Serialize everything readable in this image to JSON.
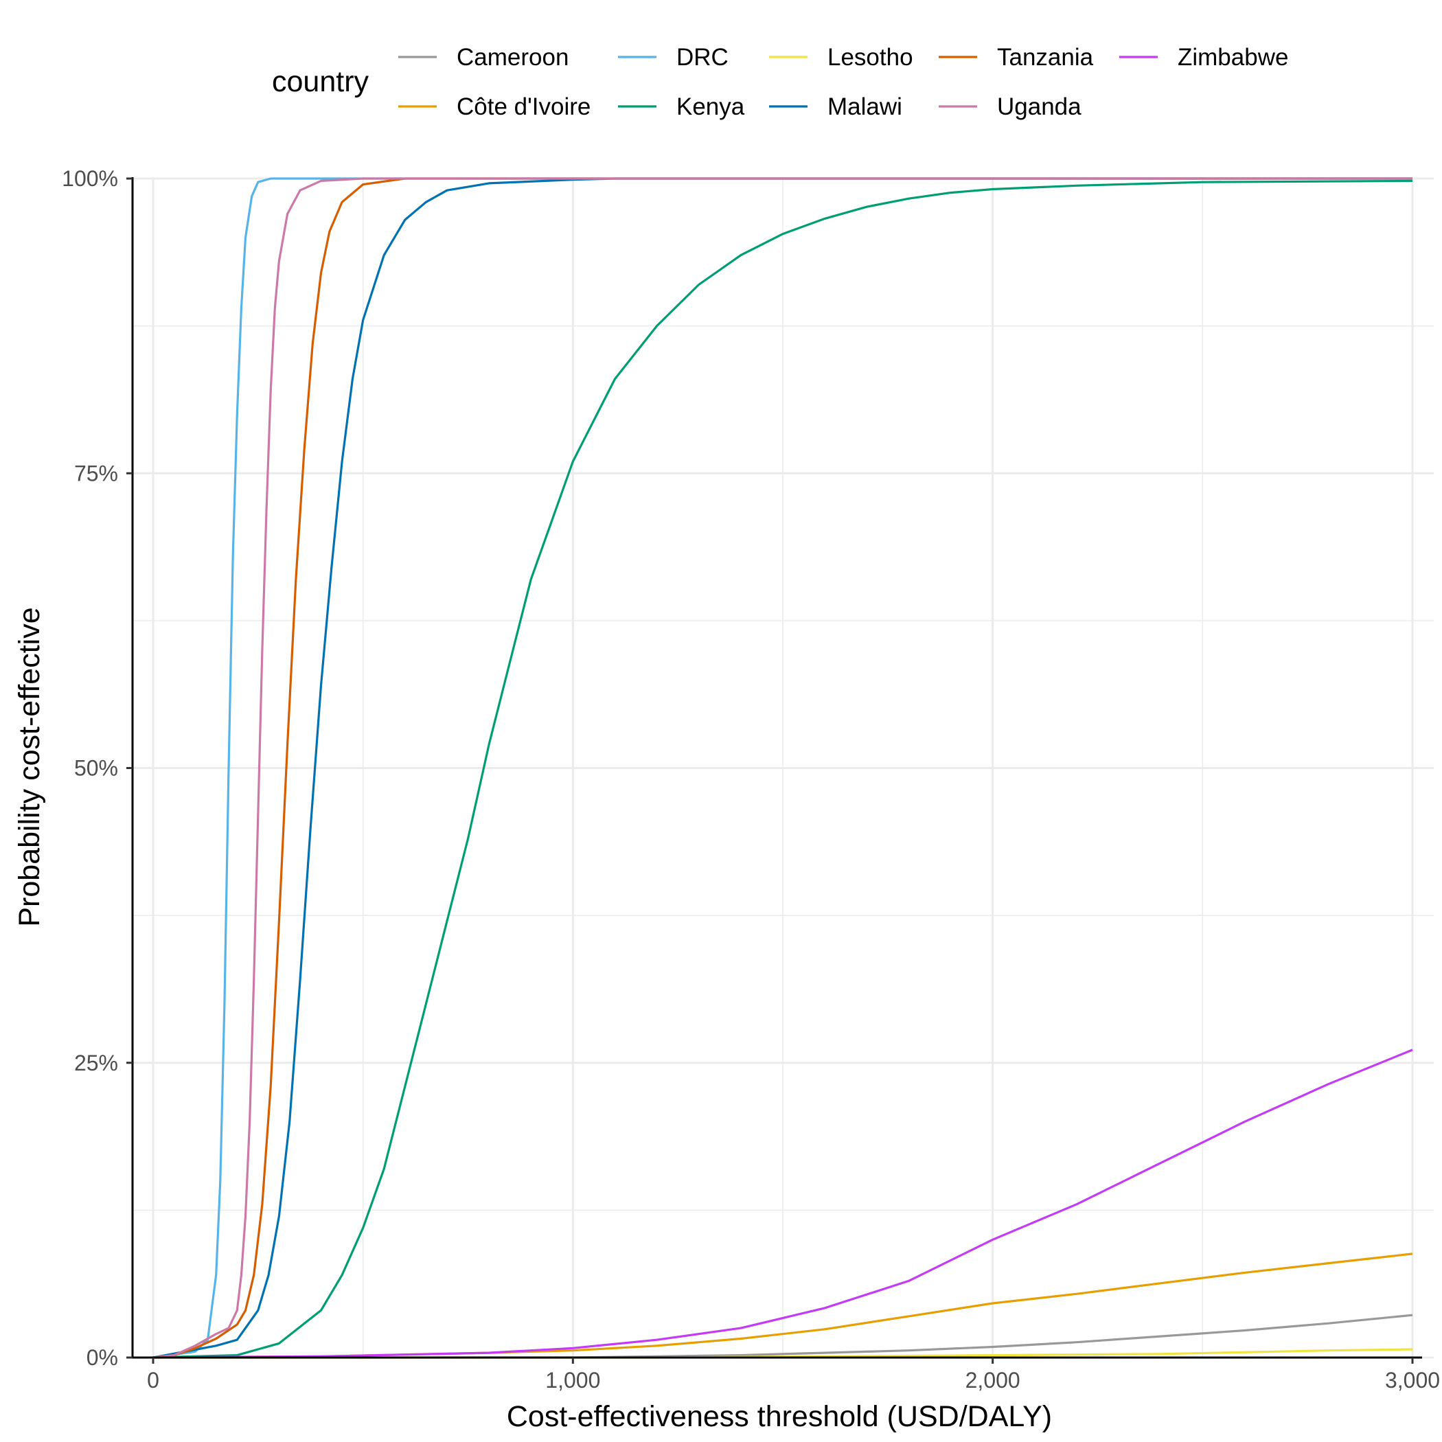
{
  "chart_data": {
    "type": "line",
    "title": "",
    "xlabel": "Cost-effectiveness threshold (USD/DALY)",
    "ylabel": "Probability cost-effective",
    "xlim": [
      0,
      3000
    ],
    "ylim": [
      0,
      1
    ],
    "x_ticks": [
      0,
      1000,
      2000,
      3000
    ],
    "x_tick_labels": [
      "0",
      "1,000",
      "2,000",
      "3,000"
    ],
    "y_ticks": [
      0,
      0.25,
      0.5,
      0.75,
      1
    ],
    "y_tick_labels": [
      "0%",
      "25%",
      "50%",
      "75%",
      "100%"
    ],
    "grid": true,
    "legend": {
      "title": "country",
      "position": "top"
    },
    "series": [
      {
        "name": "Cameroon",
        "color": "#999999",
        "points": [
          [
            0,
            0
          ],
          [
            1000,
            0
          ],
          [
            1200,
            0.001
          ],
          [
            1400,
            0.002
          ],
          [
            1600,
            0.004
          ],
          [
            1800,
            0.006
          ],
          [
            2000,
            0.009
          ],
          [
            2200,
            0.013
          ],
          [
            2400,
            0.018
          ],
          [
            2600,
            0.023
          ],
          [
            2800,
            0.029
          ],
          [
            3000,
            0.036
          ]
        ]
      },
      {
        "name": "Côte d'Ivoire",
        "color": "#E69F00",
        "points": [
          [
            0,
            0
          ],
          [
            400,
            0.001
          ],
          [
            800,
            0.004
          ],
          [
            1000,
            0.006
          ],
          [
            1200,
            0.01
          ],
          [
            1400,
            0.016
          ],
          [
            1600,
            0.024
          ],
          [
            1800,
            0.035
          ],
          [
            2000,
            0.046
          ],
          [
            2200,
            0.054
          ],
          [
            2400,
            0.063
          ],
          [
            2600,
            0.072
          ],
          [
            2800,
            0.08
          ],
          [
            3000,
            0.088
          ]
        ]
      },
      {
        "name": "DRC",
        "color": "#56B4E9",
        "points": [
          [
            0,
            0
          ],
          [
            100,
            0.005
          ],
          [
            130,
            0.015
          ],
          [
            150,
            0.07
          ],
          [
            160,
            0.15
          ],
          [
            170,
            0.3
          ],
          [
            180,
            0.5
          ],
          [
            190,
            0.68
          ],
          [
            200,
            0.8
          ],
          [
            210,
            0.89
          ],
          [
            220,
            0.95
          ],
          [
            235,
            0.985
          ],
          [
            250,
            0.997
          ],
          [
            280,
            1
          ],
          [
            3000,
            1
          ]
        ]
      },
      {
        "name": "Kenya",
        "color": "#009E73",
        "points": [
          [
            0,
            0
          ],
          [
            200,
            0.002
          ],
          [
            300,
            0.012
          ],
          [
            400,
            0.04
          ],
          [
            450,
            0.07
          ],
          [
            500,
            0.11
          ],
          [
            550,
            0.16
          ],
          [
            600,
            0.23
          ],
          [
            650,
            0.3
          ],
          [
            700,
            0.37
          ],
          [
            750,
            0.44
          ],
          [
            800,
            0.52
          ],
          [
            850,
            0.59
          ],
          [
            900,
            0.66
          ],
          [
            950,
            0.71
          ],
          [
            1000,
            0.76
          ],
          [
            1100,
            0.83
          ],
          [
            1200,
            0.875
          ],
          [
            1300,
            0.91
          ],
          [
            1400,
            0.935
          ],
          [
            1500,
            0.953
          ],
          [
            1600,
            0.966
          ],
          [
            1700,
            0.976
          ],
          [
            1800,
            0.983
          ],
          [
            1900,
            0.988
          ],
          [
            2000,
            0.991
          ],
          [
            2200,
            0.994
          ],
          [
            2500,
            0.997
          ],
          [
            3000,
            0.998
          ]
        ]
      },
      {
        "name": "Lesotho",
        "color": "#F0E442",
        "points": [
          [
            0,
            0
          ],
          [
            1200,
            0
          ],
          [
            1600,
            0.001
          ],
          [
            2000,
            0.002
          ],
          [
            2400,
            0.003
          ],
          [
            2800,
            0.006
          ],
          [
            3000,
            0.007
          ]
        ]
      },
      {
        "name": "Malawi",
        "color": "#0072B2",
        "points": [
          [
            0,
            0
          ],
          [
            150,
            0.01
          ],
          [
            200,
            0.015
          ],
          [
            250,
            0.04
          ],
          [
            275,
            0.07
          ],
          [
            300,
            0.12
          ],
          [
            325,
            0.2
          ],
          [
            350,
            0.32
          ],
          [
            375,
            0.45
          ],
          [
            400,
            0.57
          ],
          [
            425,
            0.67
          ],
          [
            450,
            0.76
          ],
          [
            475,
            0.83
          ],
          [
            500,
            0.88
          ],
          [
            550,
            0.935
          ],
          [
            600,
            0.965
          ],
          [
            650,
            0.98
          ],
          [
            700,
            0.99
          ],
          [
            800,
            0.996
          ],
          [
            1000,
            0.999
          ],
          [
            1100,
            1
          ],
          [
            3000,
            1
          ]
        ]
      },
      {
        "name": "Tanzania",
        "color": "#D55E00",
        "points": [
          [
            0,
            0
          ],
          [
            50,
            0.002
          ],
          [
            100,
            0.008
          ],
          [
            150,
            0.016
          ],
          [
            200,
            0.028
          ],
          [
            220,
            0.04
          ],
          [
            240,
            0.07
          ],
          [
            260,
            0.13
          ],
          [
            280,
            0.23
          ],
          [
            300,
            0.37
          ],
          [
            320,
            0.52
          ],
          [
            340,
            0.66
          ],
          [
            360,
            0.77
          ],
          [
            380,
            0.86
          ],
          [
            400,
            0.92
          ],
          [
            420,
            0.955
          ],
          [
            450,
            0.98
          ],
          [
            500,
            0.995
          ],
          [
            600,
            1
          ],
          [
            3000,
            1
          ]
        ]
      },
      {
        "name": "Uganda",
        "color": "#CC79A7",
        "points": [
          [
            0,
            0
          ],
          [
            50,
            0.002
          ],
          [
            100,
            0.01
          ],
          [
            150,
            0.02
          ],
          [
            180,
            0.025
          ],
          [
            200,
            0.04
          ],
          [
            210,
            0.07
          ],
          [
            220,
            0.12
          ],
          [
            230,
            0.2
          ],
          [
            240,
            0.32
          ],
          [
            250,
            0.46
          ],
          [
            260,
            0.6
          ],
          [
            270,
            0.72
          ],
          [
            280,
            0.82
          ],
          [
            290,
            0.89
          ],
          [
            300,
            0.93
          ],
          [
            320,
            0.97
          ],
          [
            350,
            0.99
          ],
          [
            400,
            0.998
          ],
          [
            500,
            1
          ],
          [
            3000,
            1
          ]
        ]
      },
      {
        "name": "Zimbabwe",
        "color": "#C43BF5",
        "points": [
          [
            0,
            0
          ],
          [
            400,
            0.001
          ],
          [
            800,
            0.004
          ],
          [
            1000,
            0.008
          ],
          [
            1200,
            0.015
          ],
          [
            1400,
            0.025
          ],
          [
            1600,
            0.042
          ],
          [
            1800,
            0.065
          ],
          [
            2000,
            0.1
          ],
          [
            2200,
            0.13
          ],
          [
            2400,
            0.165
          ],
          [
            2600,
            0.2
          ],
          [
            2800,
            0.232
          ],
          [
            3000,
            0.261
          ]
        ]
      }
    ]
  }
}
